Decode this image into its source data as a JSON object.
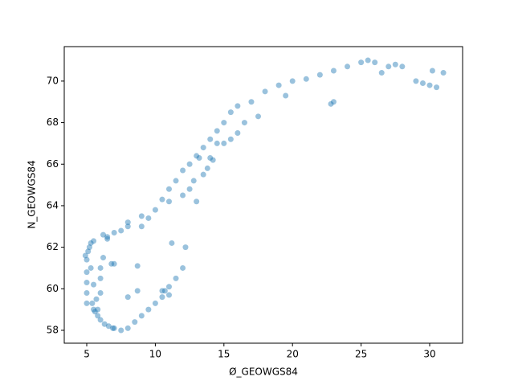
{
  "chart_data": {
    "type": "scatter",
    "x_label": "Ø_GEOWGS84",
    "y_label": "N_GEOWGS84",
    "color": "#1f77b4",
    "xlim": [
      3.36,
      32.4
    ],
    "ylim": [
      57.38,
      71.66
    ],
    "xticks": [
      5,
      10,
      15,
      20,
      25,
      30
    ],
    "yticks": [
      58,
      60,
      62,
      64,
      66,
      68,
      70
    ],
    "x": [
      5.0,
      5.0,
      5.0,
      5.0,
      5.0,
      5.1,
      5.2,
      5.3,
      5.5,
      5.5,
      5.6,
      5.7,
      5.8,
      6.0,
      6.0,
      6.0,
      6.2,
      6.5,
      6.8,
      7.0,
      5.5,
      5.8,
      6.0,
      6.3,
      6.6,
      6.9,
      7.0,
      7.5,
      8.0,
      8.5,
      9.0,
      9.5,
      10.0,
      10.5,
      11.0,
      10.7,
      10.5,
      11.0,
      11.5,
      12.0,
      11.2,
      12.2,
      8.7,
      8.7,
      8.0,
      6.5,
      7.0,
      8.0,
      9.0,
      10.0,
      10.5,
      11.0,
      11.5,
      12.0,
      12.5,
      13.0,
      13.5,
      14.0,
      14.5,
      15.0,
      15.5,
      16.0,
      17.0,
      18.0,
      19.0,
      20.0,
      21.0,
      22.0,
      23.0,
      24.0,
      25.0,
      25.5,
      26.0,
      27.0,
      27.5,
      28.0,
      29.0,
      29.5,
      30.0,
      30.5,
      31.0,
      30.2,
      16.0,
      15.0,
      14.0,
      13.5,
      12.5,
      12.0,
      11.0,
      14.2,
      13.8,
      13.0,
      19.5,
      22.8,
      23.0,
      26.5,
      17.5,
      16.5,
      15.5,
      14.5,
      13.2,
      12.8,
      9.5,
      9.0,
      8.0,
      7.5,
      6.2,
      5.3,
      4.9,
      5.4
    ],
    "values": [
      59.3,
      59.8,
      60.3,
      60.8,
      61.4,
      61.8,
      62.0,
      62.2,
      60.2,
      59.0,
      58.9,
      59.5,
      59.0,
      59.8,
      60.5,
      61.0,
      61.5,
      62.4,
      61.2,
      61.2,
      62.3,
      58.7,
      58.5,
      58.3,
      58.2,
      58.1,
      58.1,
      58.0,
      58.1,
      58.4,
      58.7,
      59.0,
      59.3,
      59.6,
      59.7,
      59.9,
      59.9,
      60.1,
      60.5,
      61.0,
      62.2,
      62.0,
      59.9,
      61.1,
      59.6,
      62.5,
      62.7,
      63.2,
      63.5,
      63.8,
      64.3,
      64.8,
      65.2,
      65.7,
      66.0,
      66.4,
      66.8,
      67.2,
      67.6,
      68.0,
      68.5,
      68.8,
      69.0,
      69.5,
      69.8,
      70.0,
      70.1,
      70.3,
      70.5,
      70.7,
      70.9,
      71.0,
      70.9,
      70.7,
      70.8,
      70.7,
      70.0,
      69.9,
      69.8,
      69.7,
      70.4,
      70.5,
      67.5,
      67.0,
      66.3,
      65.5,
      64.8,
      64.5,
      64.2,
      66.2,
      65.8,
      64.2,
      69.3,
      68.9,
      69.0,
      70.4,
      68.3,
      68.0,
      67.2,
      67.0,
      66.3,
      65.2,
      63.4,
      63.0,
      63.0,
      62.8,
      62.6,
      61.0,
      61.6,
      59.3
    ]
  }
}
